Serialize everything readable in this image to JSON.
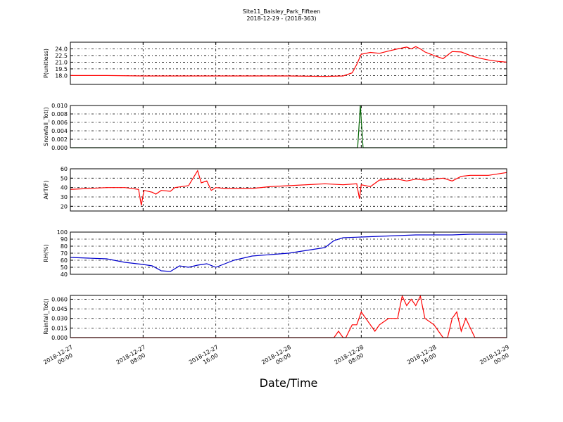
{
  "title": "Site11_Baisley_Park_Fifteen",
  "subtitle": "2018-12-29 - (2018-363)",
  "xlabel": "Date/Time",
  "chart_data": [
    {
      "type": "line",
      "ylabel": "P(unitless)",
      "color": "#ff0000",
      "ylim": [
        16.0,
        25.5
      ],
      "yticks": [
        "18.0",
        "19.5",
        "21.0",
        "22.5",
        "24.0"
      ],
      "x": [
        0,
        4,
        8,
        12,
        16,
        20,
        24,
        28,
        30,
        31,
        31.5,
        32,
        33,
        34,
        35,
        36,
        37,
        37.5,
        38,
        38.5,
        39,
        40,
        41,
        42,
        43,
        44,
        45,
        46,
        47,
        48
      ],
      "values": [
        18.0,
        18.0,
        17.9,
        17.9,
        17.9,
        17.9,
        17.9,
        17.8,
        17.9,
        18.6,
        20.5,
        22.8,
        23.2,
        23.0,
        23.5,
        24.0,
        24.4,
        24.0,
        24.5,
        24.0,
        23.3,
        22.5,
        21.8,
        23.4,
        23.3,
        22.5,
        21.9,
        21.5,
        21.2,
        21.0
      ]
    },
    {
      "type": "line",
      "ylabel": "Snowfall_Tot()",
      "color": "#006400",
      "ylim": [
        0.0,
        0.01
      ],
      "yticks": [
        "0.000",
        "0.002",
        "0.004",
        "0.006",
        "0.008",
        "0.010"
      ],
      "x": [
        0,
        31.6,
        31.9,
        32.2,
        48
      ],
      "values": [
        0.0,
        0.0,
        0.01,
        0.0,
        0.0
      ]
    },
    {
      "type": "line",
      "ylabel": "AirT(F)",
      "color": "#ff0000",
      "ylim": [
        15,
        60
      ],
      "yticks": [
        "20",
        "30",
        "40",
        "50",
        "60"
      ],
      "x": [
        0,
        2,
        4,
        6,
        7.5,
        7.8,
        8.1,
        9,
        9.4,
        10,
        11,
        11.5,
        13,
        13.5,
        14,
        14.4,
        15,
        15.5,
        16,
        17,
        20,
        22,
        24,
        28,
        30,
        31.5,
        31.8,
        32,
        33,
        34,
        36,
        37,
        38,
        39,
        40,
        41,
        42,
        43,
        44,
        46,
        48
      ],
      "values": [
        38,
        39,
        40,
        40,
        38,
        21,
        37,
        35,
        33,
        37,
        36,
        40,
        42,
        50,
        58,
        45,
        47,
        37,
        40,
        39,
        39,
        41,
        42,
        44,
        43,
        44,
        28,
        43,
        41,
        48,
        49,
        47,
        49,
        48,
        49,
        50,
        47,
        52,
        53,
        53,
        56
      ]
    },
    {
      "type": "line",
      "ylabel": "RH(%)",
      "color": "#0000cc",
      "ylim": [
        40,
        100
      ],
      "yticks": [
        "40",
        "50",
        "60",
        "70",
        "80",
        "90",
        "100"
      ],
      "x": [
        0,
        2,
        4,
        6,
        8,
        9,
        10,
        11,
        12,
        13,
        14,
        15,
        16,
        17,
        18,
        20,
        22,
        24,
        26,
        28,
        29,
        30,
        32,
        34,
        36,
        38,
        40,
        42,
        44,
        46,
        48
      ],
      "values": [
        64,
        63,
        62,
        57,
        54,
        52,
        45,
        44,
        52,
        50,
        53,
        55,
        50,
        55,
        60,
        66,
        68,
        70,
        74,
        78,
        88,
        92,
        93,
        94,
        95,
        96,
        96,
        96,
        97,
        97,
        97
      ]
    },
    {
      "type": "line",
      "ylabel": "Rainfall_Tot()",
      "color": "#ff0000",
      "ylim": [
        0.0,
        0.066
      ],
      "yticks": [
        "0.000",
        "0.015",
        "0.030",
        "0.045",
        "0.060"
      ],
      "x": [
        0,
        29,
        29.5,
        30,
        30.3,
        31,
        31.5,
        32,
        32.5,
        33,
        33.5,
        34,
        35,
        36,
        36.5,
        37,
        37.5,
        38,
        38.5,
        39,
        40,
        40.5,
        41,
        41.5,
        42,
        42.5,
        43,
        43.5,
        44,
        44.5,
        48
      ],
      "values": [
        0.0,
        0.0,
        0.01,
        0.0,
        0.0,
        0.02,
        0.02,
        0.04,
        0.03,
        0.02,
        0.01,
        0.02,
        0.03,
        0.03,
        0.065,
        0.05,
        0.06,
        0.05,
        0.065,
        0.03,
        0.02,
        0.01,
        0.0,
        0.0,
        0.03,
        0.04,
        0.01,
        0.03,
        0.015,
        0.0,
        0.0
      ]
    }
  ],
  "xticks": {
    "values": [
      0,
      8,
      16,
      24,
      32,
      40,
      48
    ],
    "labels": [
      [
        "2018-12-27",
        "00:00"
      ],
      [
        "2018-12-27",
        "08:00"
      ],
      [
        "2018-12-27",
        "16:00"
      ],
      [
        "2018-12-28",
        "00:00"
      ],
      [
        "2018-12-28",
        "08:00"
      ],
      [
        "2018-12-28",
        "16:00"
      ],
      [
        "2018-12-29",
        "00:00"
      ]
    ]
  }
}
